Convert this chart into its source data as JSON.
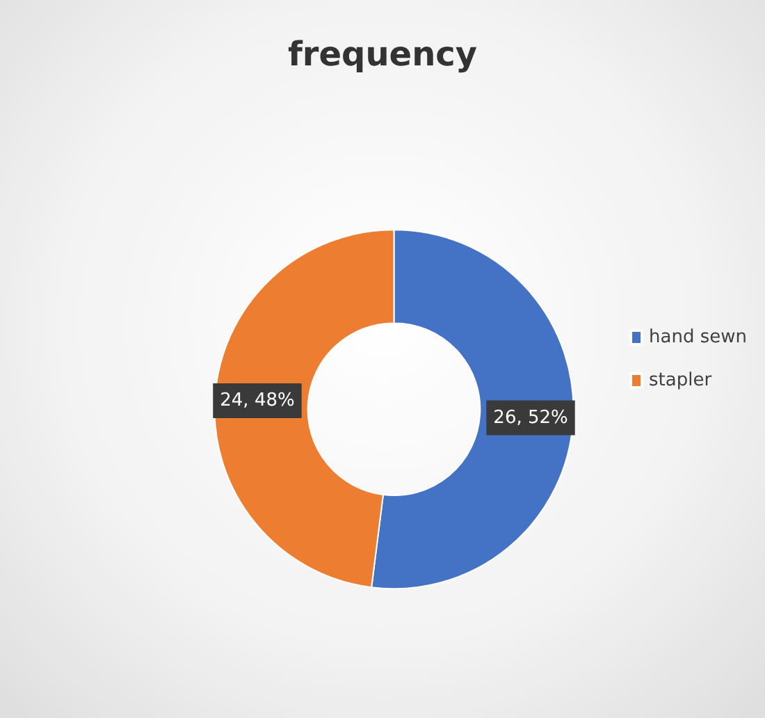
{
  "chart_data": {
    "type": "donut",
    "title": "frequency",
    "categories": [
      "hand sewn",
      "stapler"
    ],
    "values": [
      26,
      24
    ],
    "colors": [
      "#4472c4",
      "#ed7d31"
    ],
    "value_labels": [
      "26, 52%",
      "24, 48%"
    ],
    "legend": "right"
  }
}
